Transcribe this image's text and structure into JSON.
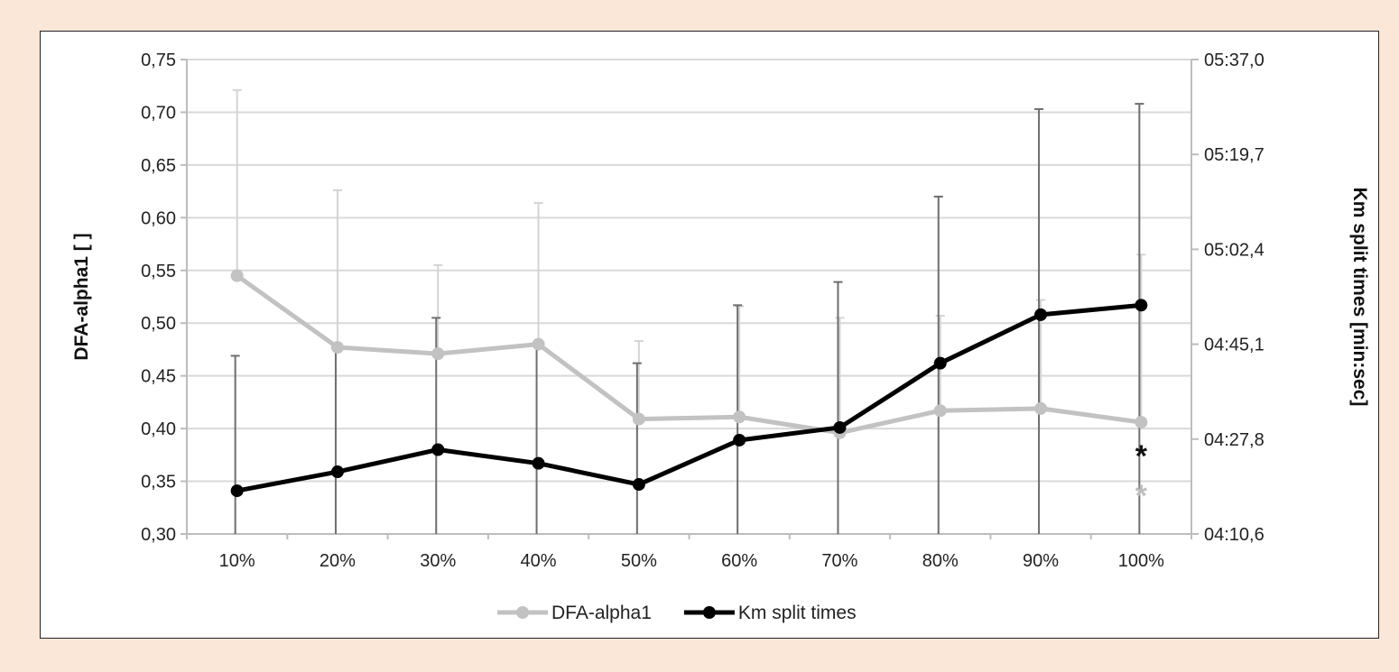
{
  "chart_data": {
    "type": "line",
    "x": [
      "10%",
      "20%",
      "30%",
      "40%",
      "50%",
      "60%",
      "70%",
      "80%",
      "90%",
      "100%"
    ],
    "y_left_label": "DFA-alpha1 [ ]",
    "y_right_label": "Km split times [min:sec]",
    "y_left_range": [
      0.3,
      0.75
    ],
    "y_left_ticks": [
      "0,30",
      "0,35",
      "0,40",
      "0,45",
      "0,50",
      "0,55",
      "0,60",
      "0,65",
      "0,70",
      "0,75"
    ],
    "y_right_ticks": [
      "04:10,6",
      "04:27,8",
      "04:45,1",
      "05:02,4",
      "05:19,7",
      "05:37,0"
    ],
    "y_right_range_seconds": [
      250.6,
      337.0
    ],
    "grid": "horizontal",
    "legend_position": "bottom",
    "series": [
      {
        "name": "DFA-alpha1",
        "axis": "left",
        "color": "#c2c2c2",
        "values": [
          0.545,
          0.477,
          0.471,
          0.48,
          0.409,
          0.411,
          0.396,
          0.417,
          0.419,
          0.406
        ],
        "error_upper": [
          0.721,
          0.626,
          0.555,
          0.614,
          0.483,
          0.516,
          0.505,
          0.507,
          0.522,
          0.565
        ]
      },
      {
        "name": "Km split times",
        "axis": "right",
        "color": "#000000",
        "values": [
          0.341,
          0.359,
          0.38,
          0.367,
          0.347,
          0.389,
          0.401,
          0.462,
          0.508,
          0.517
        ],
        "error_upper": [
          0.469,
          0.477,
          0.505,
          0.481,
          0.462,
          0.517,
          0.539,
          0.62,
          0.703,
          0.708
        ]
      }
    ],
    "annotations": [
      {
        "text": "*",
        "category": "100%",
        "color": "#111111"
      },
      {
        "text": "*",
        "category": "100%",
        "color": "#bdbdbd"
      }
    ]
  }
}
